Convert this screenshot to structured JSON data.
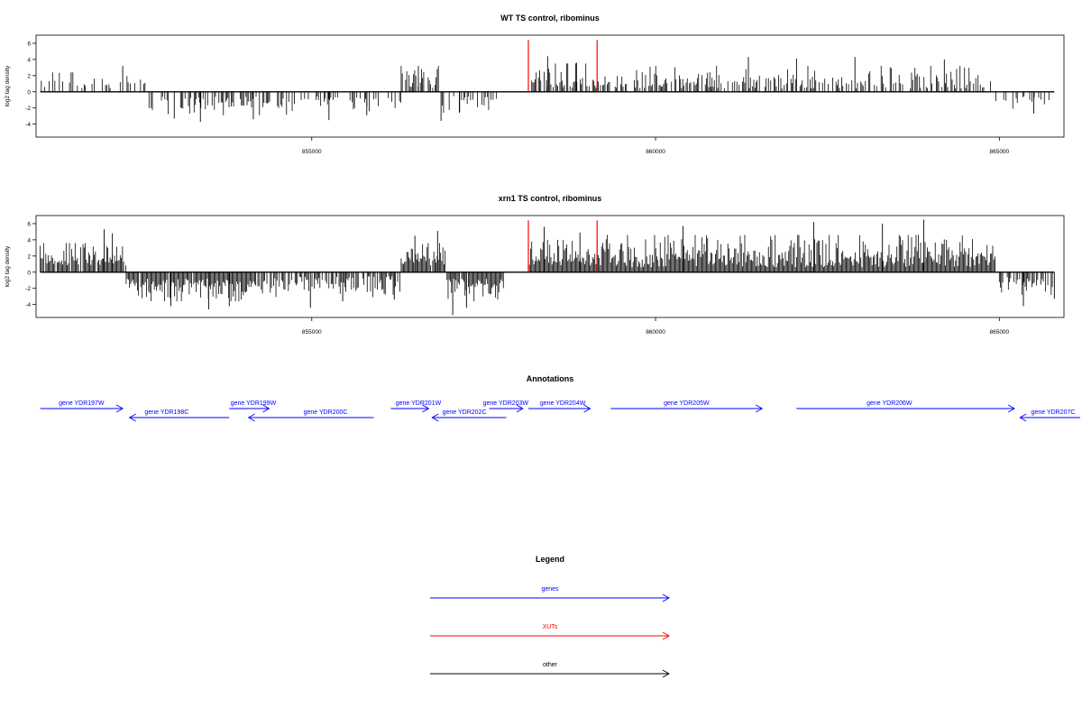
{
  "chart_data": [
    {
      "type": "bar",
      "title": "WT TS control, ribominus",
      "ylabel": "log2 tag density",
      "xlabel": "",
      "xlim": [
        850990,
        865940
      ],
      "ylim": [
        -5.6,
        7
      ],
      "yticks": [
        6,
        4,
        2,
        0,
        -2,
        -4
      ],
      "xticks": [
        855000,
        860000,
        865000
      ],
      "grid": false,
      "baseline": 0,
      "red_markers": [
        {
          "x": 858150,
          "y": 6.4
        },
        {
          "x": 859150,
          "y": 6.4
        }
      ],
      "segments": [
        {
          "start": 851050,
          "end": 852600,
          "sign": 1,
          "min": 0.4,
          "max": 2.4,
          "density": 0.28,
          "peaks": [
            {
              "x": 852250,
              "y": 3.2
            },
            {
              "x": 851500,
              "y": 2.4
            }
          ]
        },
        {
          "start": 852600,
          "end": 854900,
          "sign": -1,
          "min": 0.6,
          "max": 2.9,
          "density": 0.42,
          "peaks": [
            {
              "x": 853380,
              "y": -3.7
            },
            {
              "x": 854150,
              "y": -3.4
            },
            {
              "x": 853000,
              "y": -3.3
            }
          ]
        },
        {
          "start": 854900,
          "end": 856300,
          "sign": -1,
          "min": 0.5,
          "max": 2.4,
          "density": 0.35,
          "peaks": [
            {
              "x": 855250,
              "y": -3.5
            },
            {
              "x": 855800,
              "y": -2.9
            }
          ]
        },
        {
          "start": 856300,
          "end": 856900,
          "sign": 1,
          "min": 0.5,
          "max": 3.2,
          "density": 0.55,
          "peaks": [
            {
              "x": 856550,
              "y": 3.2
            }
          ]
        },
        {
          "start": 856900,
          "end": 857700,
          "sign": -1,
          "min": 0.5,
          "max": 2.6,
          "density": 0.45,
          "peaks": [
            {
              "x": 856880,
              "y": -3.6
            },
            {
              "x": 857150,
              "y": -2.5
            }
          ]
        },
        {
          "start": 858150,
          "end": 859150,
          "sign": 1,
          "min": 0.5,
          "max": 3.5,
          "density": 0.7,
          "peaks": [
            {
              "x": 858430,
              "y": 4.4
            },
            {
              "x": 858850,
              "y": 3.6
            }
          ]
        },
        {
          "start": 859150,
          "end": 864880,
          "sign": 1,
          "min": 0.4,
          "max": 3.2,
          "density": 0.55,
          "peaks": [
            {
              "x": 862900,
              "y": 4.3
            },
            {
              "x": 861350,
              "y": 4.3
            },
            {
              "x": 864200,
              "y": 4.0
            },
            {
              "x": 862050,
              "y": 4.1
            }
          ]
        },
        {
          "start": 864950,
          "end": 865800,
          "sign": -1,
          "min": 0.5,
          "max": 2.2,
          "density": 0.35,
          "peaks": [
            {
              "x": 865500,
              "y": -2.7
            }
          ]
        }
      ]
    },
    {
      "type": "bar",
      "title": "xrn1 TS control, ribominus",
      "ylabel": "log2 tag density",
      "xlabel": "",
      "xlim": [
        850990,
        865940
      ],
      "ylim": [
        -5.6,
        7
      ],
      "yticks": [
        6,
        4,
        2,
        0,
        -2,
        -4
      ],
      "xticks": [
        855000,
        860000,
        865000
      ],
      "grid": false,
      "baseline": 0,
      "red_markers": [
        {
          "x": 858150,
          "y": 6.4
        },
        {
          "x": 859150,
          "y": 6.4
        }
      ],
      "segments": [
        {
          "start": 851050,
          "end": 852300,
          "sign": 1,
          "min": 0.8,
          "max": 3.6,
          "density": 0.9,
          "peaks": [
            {
              "x": 851980,
              "y": 5.3
            },
            {
              "x": 852100,
              "y": 4.8
            }
          ]
        },
        {
          "start": 852300,
          "end": 854200,
          "sign": -1,
          "min": 0.8,
          "max": 3.6,
          "density": 0.95,
          "peaks": [
            {
              "x": 853500,
              "y": -4.6
            },
            {
              "x": 853800,
              "y": -4.2
            },
            {
              "x": 852950,
              "y": -4.2
            }
          ]
        },
        {
          "start": 854200,
          "end": 856300,
          "sign": -1,
          "min": 0.5,
          "max": 3.2,
          "density": 0.7,
          "peaks": [
            {
              "x": 854980,
              "y": -4.4
            },
            {
              "x": 855450,
              "y": -3.6
            },
            {
              "x": 856200,
              "y": -3.4
            }
          ]
        },
        {
          "start": 856300,
          "end": 856950,
          "sign": 1,
          "min": 0.8,
          "max": 3.6,
          "density": 0.95,
          "peaks": [
            {
              "x": 856830,
              "y": 5.1
            },
            {
              "x": 856500,
              "y": 4.5
            }
          ]
        },
        {
          "start": 856950,
          "end": 857800,
          "sign": -1,
          "min": 0.8,
          "max": 3.6,
          "density": 0.95,
          "peaks": [
            {
              "x": 857050,
              "y": -5.3
            },
            {
              "x": 857250,
              "y": -4.4
            }
          ]
        },
        {
          "start": 858150,
          "end": 859150,
          "sign": 1,
          "min": 0.8,
          "max": 4.0,
          "density": 1.0,
          "peaks": [
            {
              "x": 858380,
              "y": 5.6
            },
            {
              "x": 858900,
              "y": 4.9
            }
          ]
        },
        {
          "start": 859150,
          "end": 864950,
          "sign": 1,
          "min": 0.6,
          "max": 4.6,
          "density": 1.0,
          "peaks": [
            {
              "x": 863900,
              "y": 6.5
            },
            {
              "x": 860400,
              "y": 5.7
            },
            {
              "x": 862300,
              "y": 6.2
            },
            {
              "x": 863300,
              "y": 6.0
            }
          ]
        },
        {
          "start": 865000,
          "end": 865800,
          "sign": -1,
          "min": 0.6,
          "max": 2.8,
          "density": 0.7,
          "peaks": [
            {
              "x": 865350,
              "y": -4.2
            },
            {
              "x": 865800,
              "y": -3.3
            }
          ]
        }
      ]
    }
  ],
  "annotations": {
    "title": "Annotations",
    "genes": [
      {
        "label": "gene YDR197W",
        "start": 851050,
        "end": 852250,
        "strand": "+",
        "row": 0,
        "label_x": 851650
      },
      {
        "label": "gene YDR198C",
        "start": 852350,
        "end": 853800,
        "strand": "-",
        "row": 1,
        "label_x": 852890
      },
      {
        "label": "gene YDR199W",
        "start": 853800,
        "end": 854380,
        "strand": "+",
        "row": 0,
        "label_x": 854150
      },
      {
        "label": "gene YDR200C",
        "start": 854080,
        "end": 855900,
        "strand": "-",
        "row": 1,
        "label_x": 855200
      },
      {
        "label": "gene YDR201W",
        "start": 856150,
        "end": 856700,
        "strand": "+",
        "row": 0,
        "label_x": 856550
      },
      {
        "label": "gene YDR202C",
        "start": 856750,
        "end": 857830,
        "strand": "-",
        "row": 1,
        "label_x": 857220
      },
      {
        "label": "gene YDR203W",
        "start": 857580,
        "end": 858070,
        "strand": "+",
        "row": 0,
        "label_x": 857820
      },
      {
        "label": "gene YDR204W",
        "start": 858150,
        "end": 859050,
        "strand": "+",
        "row": 0,
        "label_x": 858650
      },
      {
        "label": "gene YDR205W",
        "start": 859350,
        "end": 861550,
        "strand": "+",
        "row": 0,
        "label_x": 860450
      },
      {
        "label": "gene YDR206W",
        "start": 862050,
        "end": 865220,
        "strand": "+",
        "row": 0,
        "label_x": 863400
      },
      {
        "label": "gene YDR207C",
        "start": 865300,
        "end": 867100,
        "strand": "-",
        "row": 1,
        "label_x": 866600
      }
    ]
  },
  "legend": {
    "title": "Legend",
    "items": [
      {
        "label": "genes",
        "color": "#0000ff"
      },
      {
        "label": "XUTs",
        "color": "#ff0000"
      },
      {
        "label": "other",
        "color": "#000000"
      }
    ]
  },
  "colors": {
    "bars": "#000000",
    "markers": "#ff0000",
    "genes": "#0000ff",
    "axis": "#000000"
  }
}
